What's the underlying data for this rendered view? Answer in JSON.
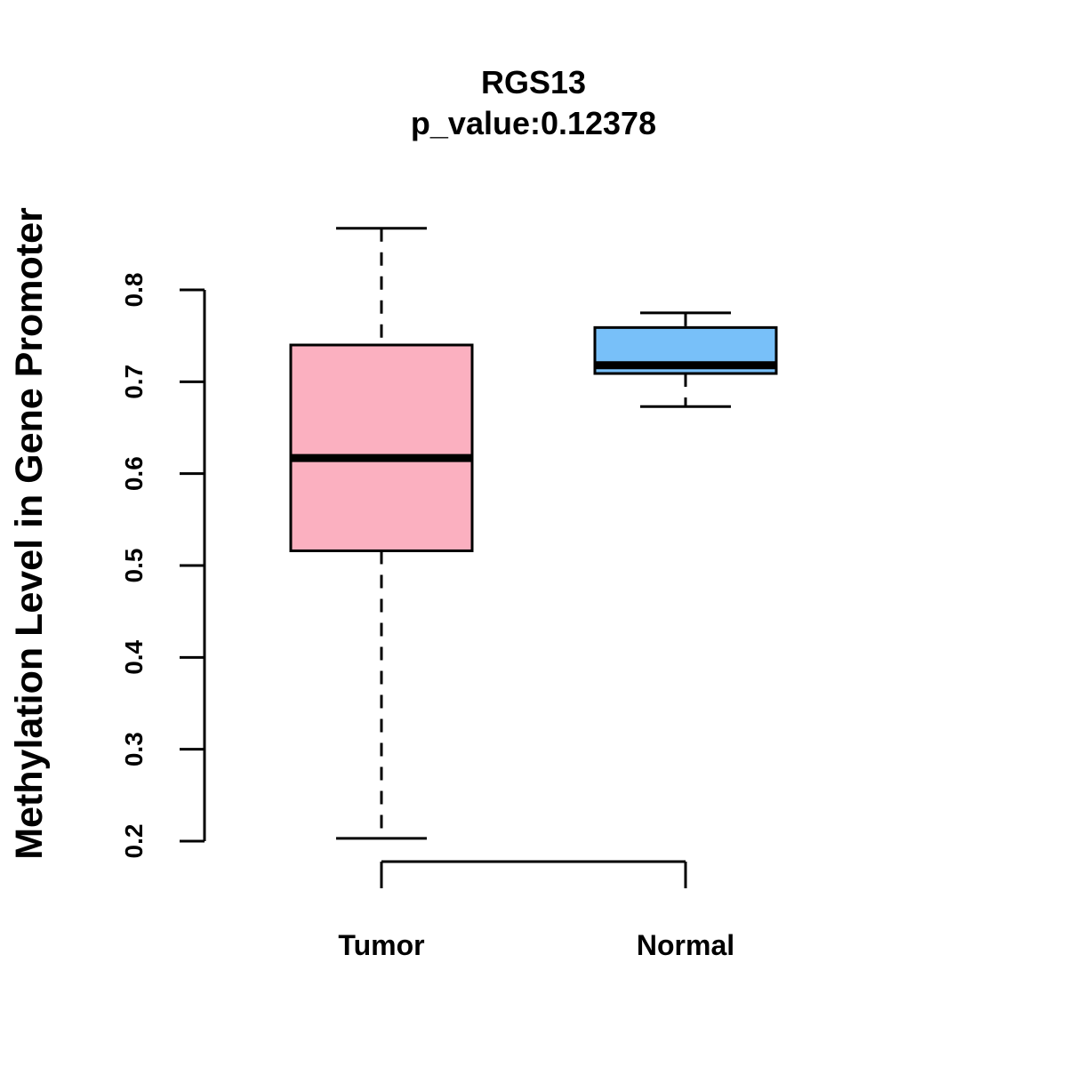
{
  "chart_data": {
    "type": "boxplot",
    "title": "RGS13",
    "subtitle": "p_value:0.12378",
    "ylabel": "Methylation Level in Gene Promoter",
    "xlabel": "",
    "ylim": [
      0.2,
      0.8
    ],
    "yticks": [
      "0.2",
      "0.3",
      "0.4",
      "0.5",
      "0.6",
      "0.7",
      "0.8"
    ],
    "categories": [
      "Tumor",
      "Normal"
    ],
    "series": [
      {
        "name": "Tumor",
        "color": "#FBB0C0",
        "whisker_low": 0.203,
        "q1": 0.516,
        "median": 0.617,
        "q3": 0.74,
        "whisker_high": 0.867
      },
      {
        "name": "Normal",
        "color": "#78C0F9",
        "whisker_low": 0.673,
        "q1": 0.709,
        "median": 0.718,
        "q3": 0.759,
        "whisker_high": 0.775
      }
    ]
  }
}
